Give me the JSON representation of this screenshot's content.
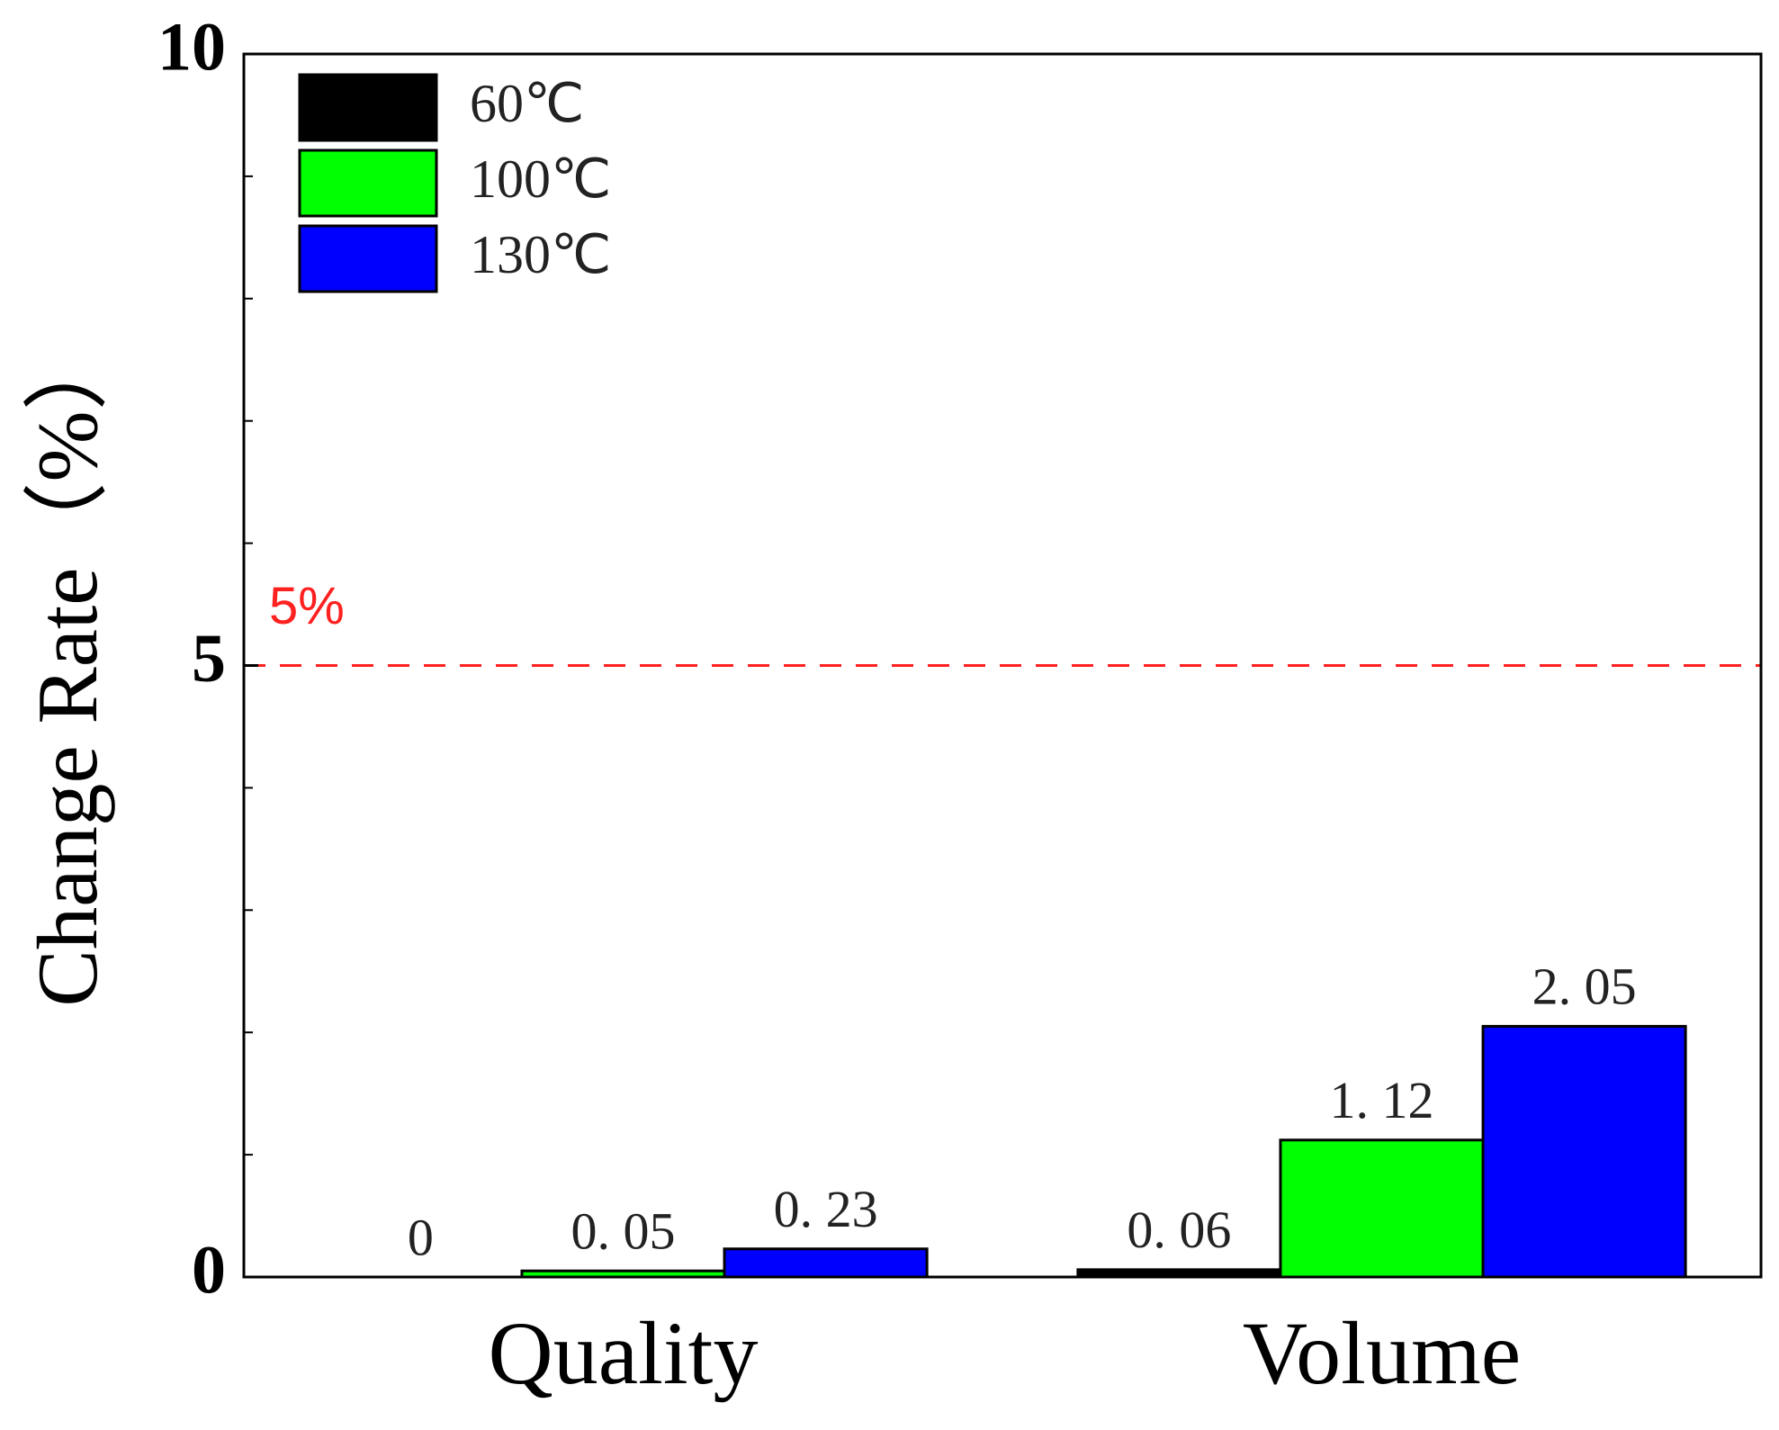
{
  "chart_data": {
    "type": "bar",
    "y_label": "Change Rate（%）",
    "categories": [
      "Quality",
      "Volume"
    ],
    "series": [
      {
        "name": "60℃",
        "color": "#000000",
        "values": [
          0,
          0.06
        ],
        "value_labels": [
          "0",
          "0. 06"
        ]
      },
      {
        "name": "100℃",
        "color": "#00ff00",
        "values": [
          0.05,
          1.12
        ],
        "value_labels": [
          "0. 05",
          "1. 12"
        ]
      },
      {
        "name": "130℃",
        "color": "#0000ff",
        "values": [
          0.23,
          2.05
        ],
        "value_labels": [
          "0. 23",
          "2. 05"
        ]
      }
    ],
    "ylim": [
      0,
      10
    ],
    "yticks": [
      0,
      5,
      10
    ],
    "minor_yticks": [
      1,
      2,
      3,
      4,
      6,
      7,
      8,
      9
    ],
    "reference_line": {
      "value": 5,
      "label": "5%",
      "color": "#ff2020"
    },
    "legend": "upper left"
  }
}
